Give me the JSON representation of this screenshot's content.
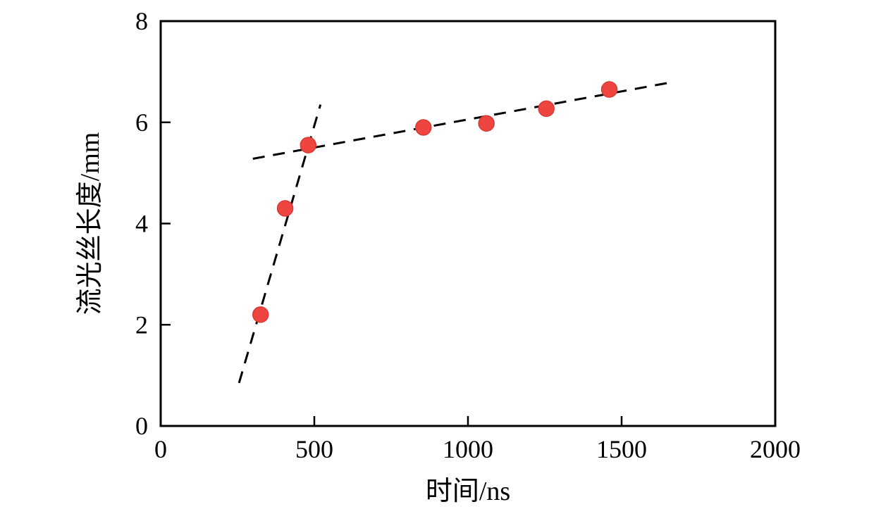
{
  "figure": {
    "background_color": "#ffffff",
    "axis_color": "#000000"
  },
  "chart_data": {
    "type": "scatter",
    "title": "",
    "xlabel": "时间/ns",
    "ylabel": "流光丝长度/mm",
    "xlim": [
      0,
      2000
    ],
    "ylim": [
      0,
      8
    ],
    "x_ticks": [
      0,
      500,
      1000,
      1500,
      2000
    ],
    "y_ticks": [
      0,
      2,
      4,
      6,
      8
    ],
    "grid": false,
    "legend": null,
    "marker": {
      "shape": "circle",
      "color": "#ee4540",
      "edge_color": "#d93a36",
      "radius_px": 11
    },
    "points": [
      {
        "x": 325,
        "y": 2.2
      },
      {
        "x": 405,
        "y": 4.3
      },
      {
        "x": 480,
        "y": 5.55
      },
      {
        "x": 855,
        "y": 5.9
      },
      {
        "x": 1060,
        "y": 5.98
      },
      {
        "x": 1255,
        "y": 6.27
      },
      {
        "x": 1460,
        "y": 6.65
      }
    ],
    "trend_lines": [
      {
        "name": "steep-dashed-fit",
        "x1": 255,
        "y1": 0.85,
        "x2": 520,
        "y2": 6.35
      },
      {
        "name": "shallow-dashed-fit",
        "x1": 300,
        "y1": 5.28,
        "x2": 1670,
        "y2": 6.8
      }
    ],
    "line_style": {
      "color": "#000000",
      "dash": "17 12",
      "width": 3
    }
  }
}
